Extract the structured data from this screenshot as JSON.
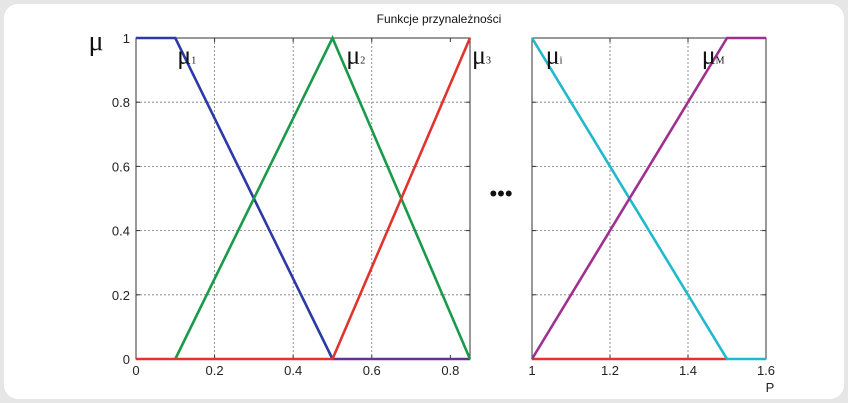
{
  "chart_data": {
    "type": "line",
    "title": "Funkcje przynależności",
    "ylabel": "μ",
    "xlabel": "P",
    "grid": true,
    "ellipsis": "•••",
    "panels": [
      {
        "xlim": [
          0,
          0.85
        ],
        "ylim": [
          0,
          1
        ],
        "xticks": [
          0,
          0.2,
          0.4,
          0.6,
          0.8
        ],
        "yticks": [
          0,
          0.2,
          0.4,
          0.6,
          0.8,
          1
        ],
        "x_tick_labels": [
          "0",
          "0.2",
          "0.4",
          "0.6",
          "0.8"
        ],
        "y_tick_labels": [
          "0",
          "0.2",
          "0.4",
          "0.6",
          "0.8",
          "1"
        ],
        "series": [
          {
            "name": "μ1",
            "color": "#6a2f93",
            "x": [
              0.5,
              0.85
            ],
            "y": [
              0,
              0
            ]
          },
          {
            "name": "μ1",
            "color": "#2b3aa6",
            "x": [
              0,
              0.1,
              0.5
            ],
            "y": [
              1,
              1,
              0
            ]
          },
          {
            "name": "μ2",
            "color": "#1a9a4a",
            "x": [
              0.1,
              0.5,
              0.85
            ],
            "y": [
              0,
              1,
              0
            ]
          },
          {
            "name": "μ3",
            "color": "#e0352e",
            "x": [
              0,
              0.5,
              0.85
            ],
            "y": [
              0,
              0,
              1
            ]
          }
        ],
        "labels": [
          {
            "base": "μ",
            "sub": "1",
            "x": 0.1,
            "y": 0.97
          },
          {
            "base": "μ",
            "sub": "2",
            "x": 0.53,
            "y": 0.97
          },
          {
            "base": "μ",
            "sub": "3",
            "x": 0.85,
            "y": 0.97
          }
        ]
      },
      {
        "xlim": [
          1,
          1.6
        ],
        "ylim": [
          0,
          1
        ],
        "xticks": [
          1,
          1.2,
          1.4,
          1.6
        ],
        "yticks": [
          0,
          0.2,
          0.4,
          0.6,
          0.8,
          1
        ],
        "x_tick_labels": [
          "1",
          "1.2",
          "1.4",
          "1.6"
        ],
        "series": [
          {
            "name": "μi",
            "color": "#e0352e",
            "x": [
              1,
              1.5
            ],
            "y": [
              0,
              0
            ]
          },
          {
            "name": "μi",
            "color": "#20b9cc",
            "x": [
              1,
              1.5,
              1.6
            ],
            "y": [
              1,
              0,
              0
            ]
          },
          {
            "name": "μM",
            "color": "#a0308f",
            "x": [
              1,
              1.5,
              1.6
            ],
            "y": [
              0,
              1,
              1
            ]
          }
        ],
        "labels": [
          {
            "base": "μ",
            "sub": "i",
            "x": 1.03,
            "y": 0.97
          },
          {
            "base": "μ",
            "sub": "M",
            "x": 1.43,
            "y": 0.97
          }
        ]
      }
    ]
  }
}
